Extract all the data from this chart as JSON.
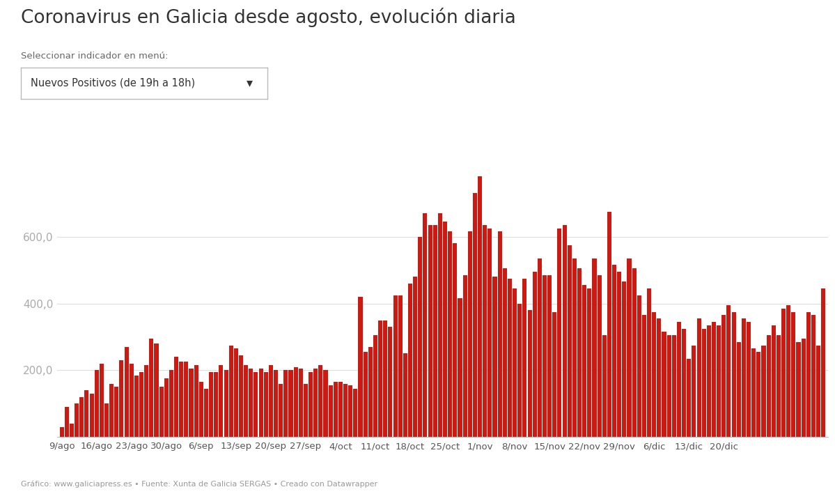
{
  "title": "Coronavirus en Galicia desde agosto, evolución diaria",
  "subtitle": "Seleccionar indicador en menú:",
  "dropdown_text": "Nuevos Positivos (de 19h a 18h)",
  "footer": "Gráfico: www.galiciapress.es • Fuente: Xunta de Galicia SERGAS • Creado con Datawrapper",
  "bar_color": "#cc1a12",
  "background_color": "#ffffff",
  "ytick_labels": [
    "200,0",
    "400,0",
    "600,0"
  ],
  "ytick_values": [
    200,
    400,
    600
  ],
  "xlabel_ticks": [
    "9/ago",
    "16/ago",
    "23/ago",
    "30/ago",
    "6/sep",
    "13/sep",
    "20/sep",
    "27/sep",
    "4/oct",
    "11/oct",
    "18/oct",
    "25/oct",
    "1/nov",
    "8/nov",
    "15/nov",
    "22/nov",
    "29/nov",
    "6/dic",
    "13/dic",
    "20/dic"
  ],
  "values": [
    30,
    90,
    40,
    100,
    120,
    140,
    130,
    200,
    220,
    100,
    160,
    150,
    230,
    270,
    220,
    185,
    195,
    215,
    295,
    280,
    150,
    175,
    200,
    240,
    225,
    225,
    205,
    215,
    165,
    145,
    195,
    195,
    215,
    200,
    275,
    265,
    245,
    215,
    205,
    195,
    205,
    195,
    215,
    200,
    160,
    200,
    200,
    210,
    205,
    160,
    195,
    205,
    215,
    200,
    155,
    165,
    165,
    160,
    155,
    145,
    420,
    255,
    270,
    305,
    350,
    350,
    330,
    425,
    425,
    250,
    460,
    480,
    600,
    670,
    635,
    635,
    670,
    645,
    615,
    580,
    415,
    485,
    615,
    730,
    780,
    635,
    625,
    480,
    615,
    505,
    475,
    445,
    400,
    475,
    380,
    495,
    535,
    485,
    485,
    375,
    625,
    635,
    575,
    535,
    505,
    455,
    445,
    535,
    485,
    305,
    675,
    515,
    495,
    465,
    535,
    505,
    425,
    365,
    445,
    375,
    355,
    315,
    305,
    305,
    345,
    325,
    235,
    275,
    355,
    325,
    335,
    345,
    335,
    365,
    395,
    375,
    285,
    355,
    345,
    265,
    255,
    275,
    305,
    335,
    305,
    385,
    395,
    375,
    285,
    295,
    375,
    365,
    275,
    445
  ]
}
